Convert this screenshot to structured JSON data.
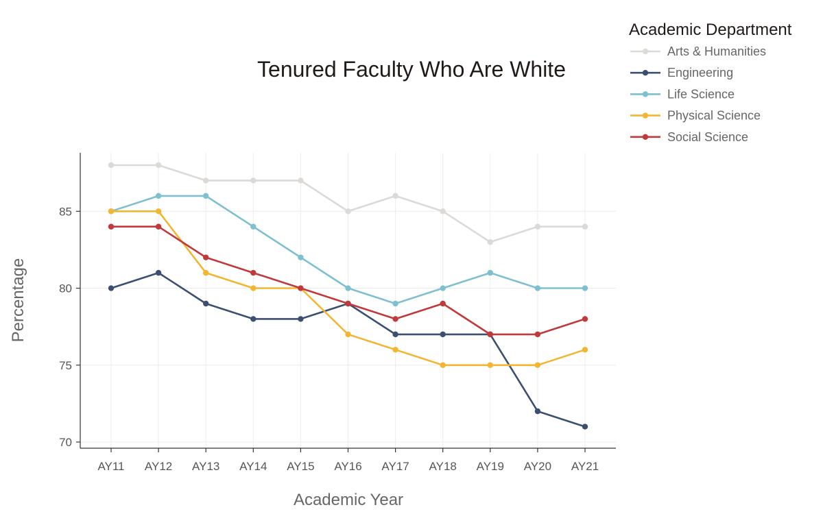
{
  "chart_data": {
    "type": "line",
    "title": "Tenured Faculty Who Are White",
    "xlabel": "Academic Year",
    "ylabel": "Percentage",
    "categories": [
      "AY11",
      "AY12",
      "AY13",
      "AY14",
      "AY15",
      "AY16",
      "AY17",
      "AY18",
      "AY19",
      "AY20",
      "AY21"
    ],
    "ylim": [
      69.6,
      88.8
    ],
    "yticks": [
      70,
      75,
      80,
      85
    ],
    "grid": true,
    "legend_title": "Academic Department",
    "legend_position": "top-right",
    "series": [
      {
        "name": "Arts & Humanities",
        "color": "#dcd9d6",
        "values": [
          88,
          88,
          87,
          87,
          87,
          85,
          86,
          85,
          83,
          84,
          84
        ]
      },
      {
        "name": "Engineering",
        "color": "#3d4f71",
        "values": [
          80,
          81,
          79,
          78,
          78,
          79,
          77,
          77,
          77,
          72,
          71
        ]
      },
      {
        "name": "Life Science",
        "color": "#7ec0cf",
        "values": [
          85,
          86,
          86,
          84,
          82,
          80,
          79,
          80,
          81,
          80,
          80
        ]
      },
      {
        "name": "Physical Science",
        "color": "#f2b632",
        "values": [
          85,
          85,
          81,
          80,
          80,
          77,
          76,
          75,
          75,
          75,
          76
        ]
      },
      {
        "name": "Social Science",
        "color": "#c0393b",
        "values": [
          84,
          84,
          82,
          81,
          80,
          79,
          78,
          79,
          77,
          77,
          78
        ]
      }
    ]
  }
}
